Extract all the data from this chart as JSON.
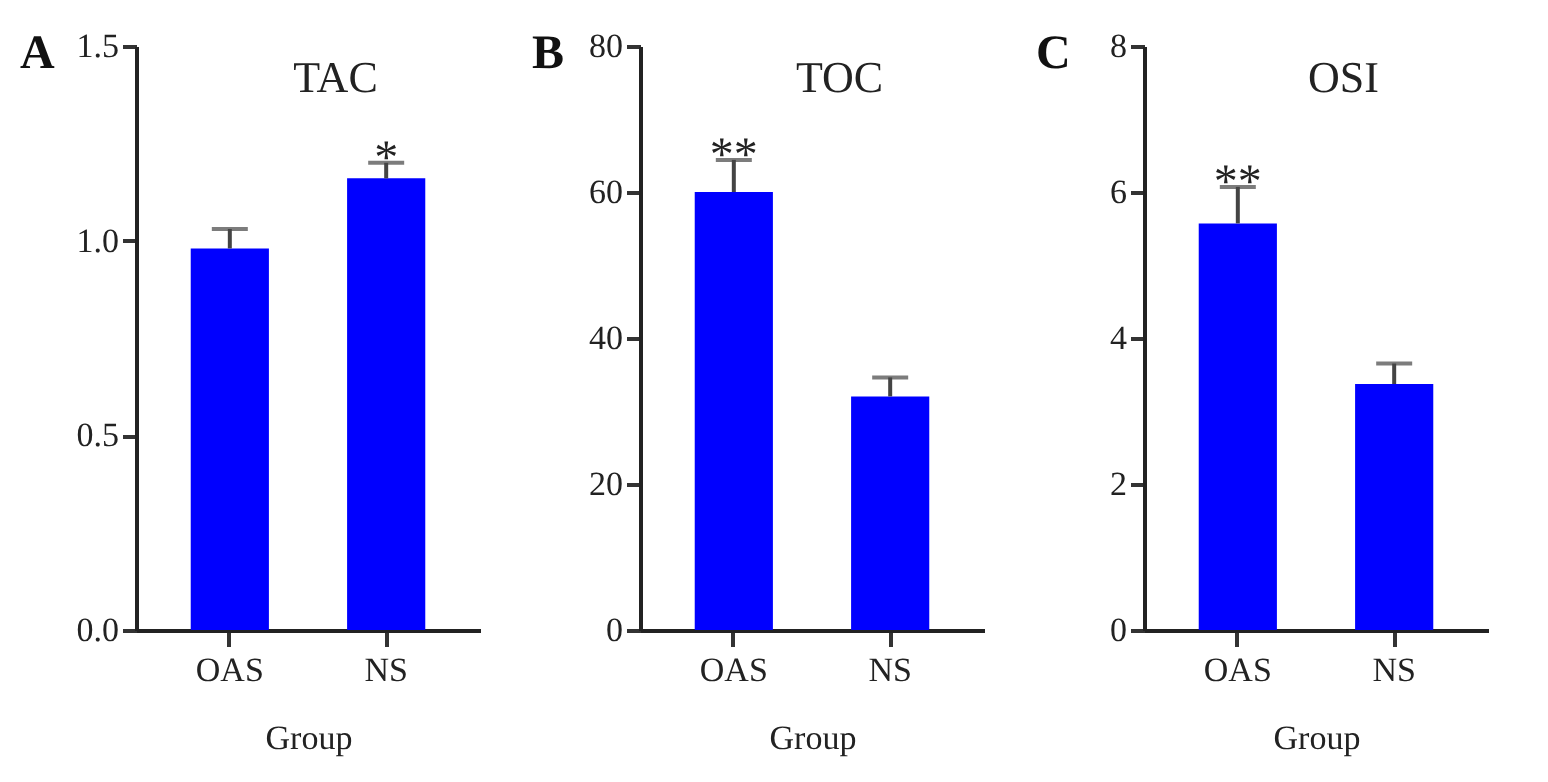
{
  "chart_data": [
    {
      "type": "bar",
      "title": "TAC",
      "xlabel": "Group",
      "categories": [
        "OAS",
        "NS"
      ],
      "values": [
        0.98,
        1.16
      ],
      "errors": [
        0.05,
        0.04
      ],
      "color": "#0000ff",
      "ylim": [
        0,
        1.5
      ],
      "yticks": [
        {
          "value": 0,
          "label": "0.0"
        },
        0.5,
        {
          "value": 1,
          "label": "1.0"
        },
        1.5
      ],
      "grid": false,
      "annotations": [
        "A",
        "*"
      ]
    },
    {
      "type": "bar",
      "title": "TOC",
      "xlabel": "Group",
      "categories": [
        "OAS",
        "NS"
      ],
      "values": [
        60,
        32
      ],
      "errors": [
        4.4,
        2.6
      ],
      "color": "#0000ff",
      "ylim": [
        0,
        80
      ],
      "yticks": [
        0,
        20,
        40,
        60,
        80
      ],
      "grid": false,
      "annotations": [
        "B",
        "**"
      ]
    },
    {
      "type": "bar",
      "title": "OSI",
      "xlabel": "Group",
      "categories": [
        "OAS",
        "NS"
      ],
      "values": [
        5.57,
        3.37
      ],
      "errors": [
        0.5,
        0.28
      ],
      "color": "#0000ff",
      "ylim": [
        0,
        8
      ],
      "yticks": [
        0,
        2,
        4,
        6,
        8
      ],
      "grid": false,
      "annotations": [
        "C",
        "**"
      ]
    }
  ]
}
